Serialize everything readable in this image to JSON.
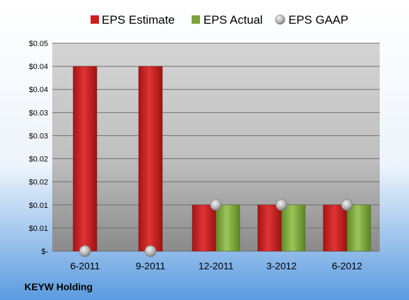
{
  "chart_data": {
    "type": "bar",
    "categories": [
      "6-2011",
      "9-2011",
      "12-2011",
      "3-2012",
      "6-2012"
    ],
    "series": [
      {
        "name": "EPS Estimate",
        "values": [
          0.04,
          0.04,
          0.01,
          0.01,
          0.01
        ],
        "color": "#cc1f1f",
        "kind": "bar"
      },
      {
        "name": "EPS Actual",
        "values": [
          null,
          null,
          0.01,
          0.01,
          0.01
        ],
        "color": "#7aa33a",
        "kind": "bar"
      },
      {
        "name": "EPS GAAP",
        "values": [
          0,
          0,
          0.01,
          0.01,
          0.01
        ],
        "color": "#a9a9a9",
        "kind": "marker"
      }
    ],
    "y_tick_labels": [
      "$-",
      "$0.01",
      "$0.01",
      "$0.02",
      "$0.02",
      "$0.03",
      "$0.03",
      "$0.04",
      "$0.04",
      "$0.05"
    ],
    "ylim": [
      0,
      0.045
    ],
    "grid": true,
    "legend_placement": "top"
  },
  "company": "KEYW Holding",
  "colors": {
    "background_top": "#ffffff",
    "background_bottom": "#5b9be0",
    "plot_top": "#d4d4d4",
    "plot_bottom": "#8a8a8a"
  }
}
